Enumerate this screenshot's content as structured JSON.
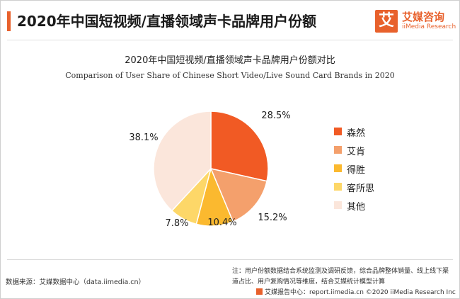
{
  "header": {
    "title": "2020年中国短视频/直播领域声卡品牌用户份额",
    "logo_glyph": "艾",
    "logo_cn": "艾媒咨询",
    "logo_en": "iiMedia Research"
  },
  "colors": {
    "accent": "#e8612c",
    "slices": [
      "#f15a24",
      "#f4a06c",
      "#fbb92f",
      "#fdd768",
      "#fbe6db"
    ]
  },
  "chart_data": {
    "type": "pie",
    "title": "2020年中国短视频/直播领域声卡品牌用户份额对比",
    "subtitle": "Comparison of User Share of Chinese Short Video/Live Sound Card Brands in 2020",
    "categories": [
      "森然",
      "艾肯",
      "得胜",
      "客所思",
      "其他"
    ],
    "values": [
      28.5,
      15.2,
      10.4,
      7.8,
      38.1
    ],
    "labels": [
      "28.5%",
      "15.2%",
      "10.4%",
      "7.8%",
      "38.1%"
    ],
    "legend_position": "right"
  },
  "footer": {
    "source": "数据来源：艾媒数据中心（data.iimedia.cn）",
    "note": "注：用户份额数据结合系统监测及调研反馈，综合品牌整体销量、线上线下渠道占比、用户复购情况等维度，结合艾媒统计模型计算",
    "copyright": "艾媒报告中心：report.iimedia.cn  ©2020  iiMedia Research  Inc"
  }
}
